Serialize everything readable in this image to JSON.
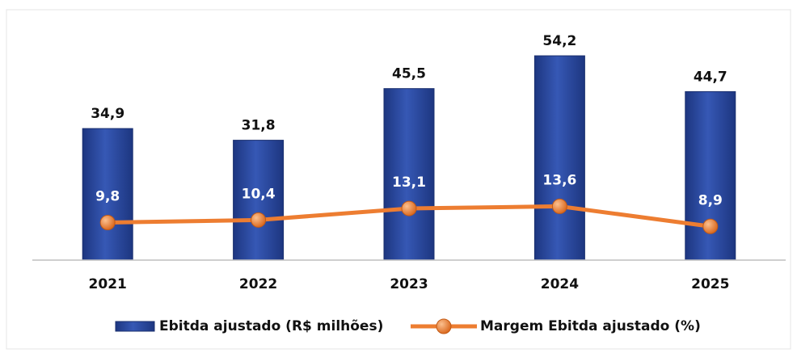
{
  "chart_data": {
    "type": "bar",
    "categories": [
      "2021",
      "2022",
      "2023",
      "2024",
      "2025"
    ],
    "series": [
      {
        "name": "Ebitda ajustado (R$ milhões)",
        "type": "bar",
        "color": "#2f4fa3",
        "values": [
          34.9,
          31.8,
          45.5,
          54.2,
          44.7
        ],
        "value_labels": [
          "34,9",
          "31,8",
          "45,5",
          "54,2",
          "44,7"
        ]
      },
      {
        "name": "Margem Ebitda ajustado (%)",
        "type": "line",
        "axis": "y2",
        "color": "#ed7d31",
        "values": [
          9.8,
          10.4,
          13.1,
          13.6,
          8.9
        ],
        "value_labels": [
          "9,8",
          "10,4",
          "13,1",
          "13,6",
          "8,9"
        ]
      }
    ],
    "ylim": [
      0,
      60
    ],
    "y2lim": [
      1,
      54
    ],
    "legend": "bottom"
  }
}
